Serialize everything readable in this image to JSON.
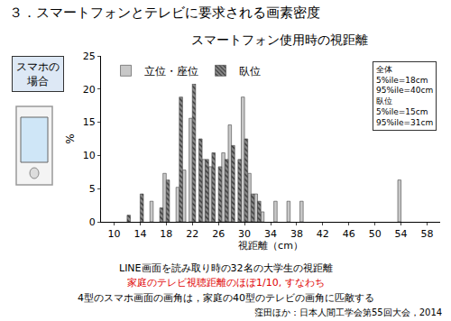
{
  "header": {
    "title": "３．スマートフォンとテレビに要求される画素密度",
    "side_label": [
      "スマホの",
      "場合"
    ]
  },
  "chart_data": {
    "type": "bar",
    "title": "スマートフォン使用時の視距離",
    "x_label": "視距離（cm）",
    "y_label": "%",
    "x": [
      12,
      14,
      16,
      17,
      18,
      20,
      21,
      22,
      23,
      24,
      25,
      26,
      27,
      28,
      29,
      30,
      31,
      32,
      33,
      35,
      37,
      39,
      54
    ],
    "series": [
      {
        "name": "立位・座位",
        "color": "#c8c8c8",
        "values": [
          null,
          null,
          3.1,
          null,
          7.3,
          5.2,
          7.8,
          15.6,
          null,
          9.4,
          8.3,
          null,
          10.4,
          14.6,
          null,
          18.8,
          7.3,
          4.2,
          1.5,
          3.1,
          3.1,
          3.1,
          6.3
        ]
      },
      {
        "name": "臥位",
        "color": "#8c8c8c",
        "marker": "hatch",
        "values": [
          1.0,
          4.2,
          null,
          2.1,
          6.3,
          18.8,
          null,
          20.8,
          12.5,
          9.4,
          10.4,
          8.3,
          9.4,
          11.5,
          9.4,
          12.5,
          4.2,
          3.1,
          null,
          null,
          null,
          null,
          null
        ]
      }
    ],
    "xlim": [
      8,
      60
    ],
    "xticks": [
      10,
      14,
      18,
      22,
      26,
      30,
      34,
      38,
      42,
      46,
      50,
      54,
      58
    ],
    "ylim": [
      0,
      25
    ],
    "yticks": [
      0,
      5,
      10,
      15,
      20,
      25
    ],
    "grid": false,
    "legend": "top left",
    "annotations": [
      {
        "text": [
          "全体",
          "5%ile=18cm",
          "95%ile=40cm",
          "臥位",
          "5%ile=15cm",
          "95%ile=31cm"
        ]
      }
    ]
  },
  "footer": {
    "lines": [
      {
        "text": "LINE画面を読み取り時の32名の大学生の視距離"
      },
      {
        "text": "家庭のテレビ視聴距離のほぼ1/10, すなわち",
        "color": "#e00000"
      },
      {
        "text": "4型のスマホ画面の画角は，家庭の40型のテレビの画角に匹敵する"
      }
    ],
    "citation": "窪田ほか：日本人間工学会第55回大会，2014"
  }
}
